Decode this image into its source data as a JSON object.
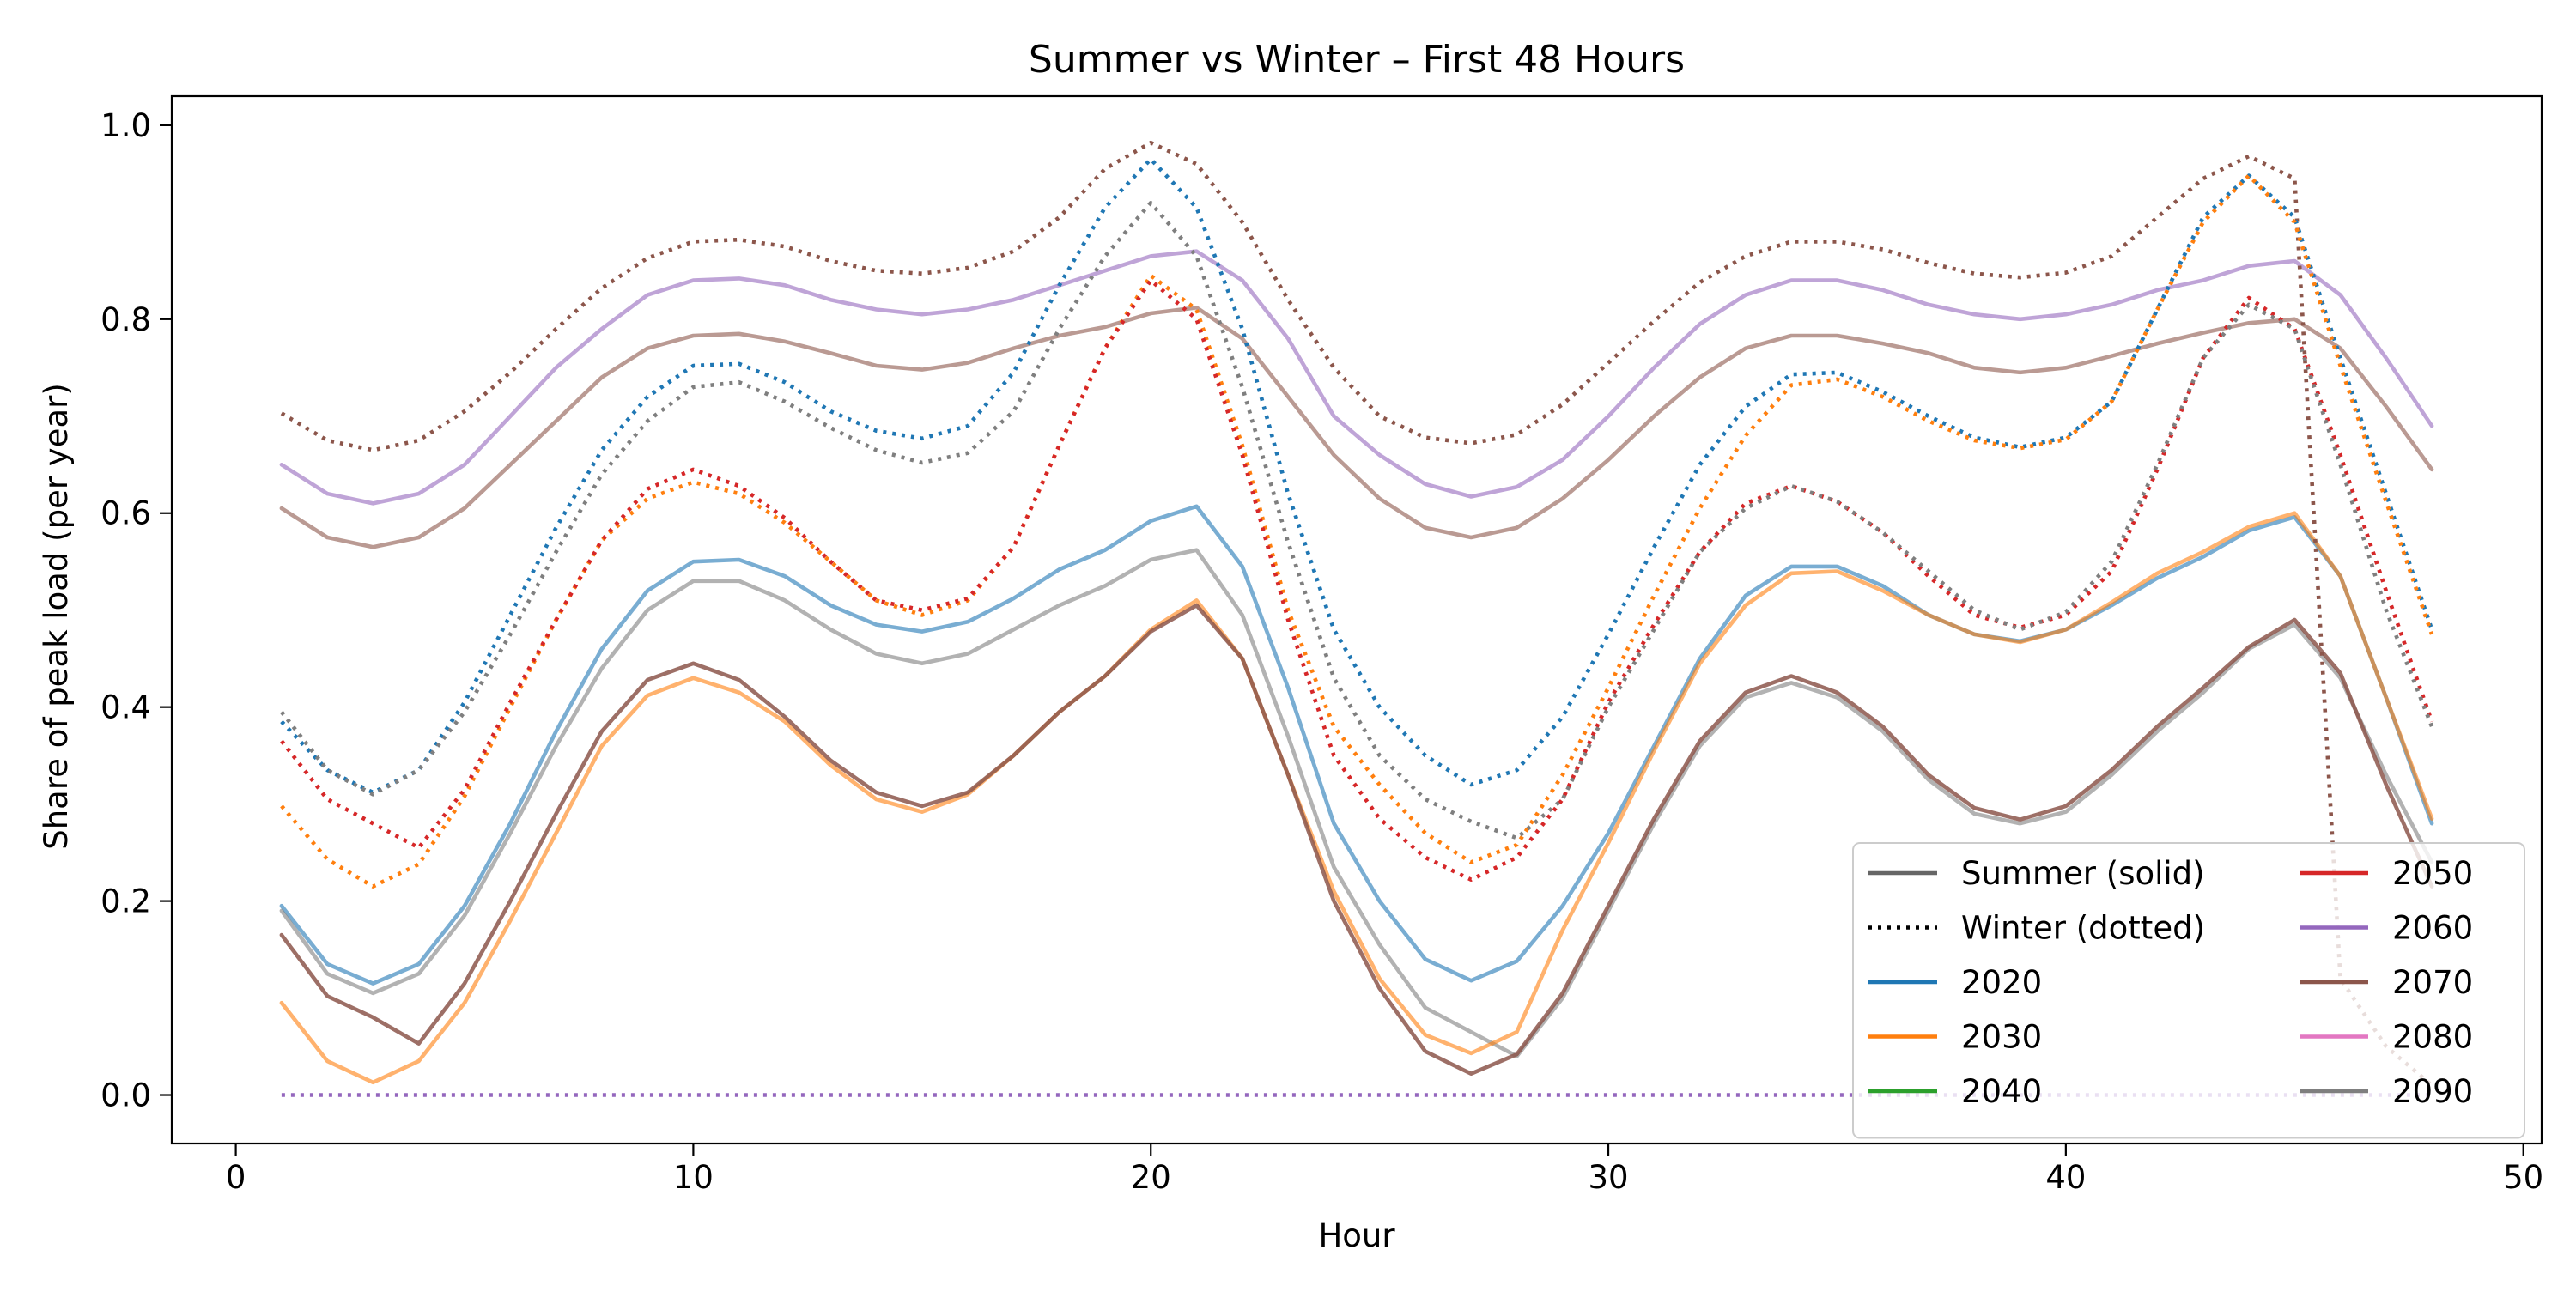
{
  "chart_data": {
    "type": "line",
    "title": "Summer vs Winter – First 48 Hours",
    "xlabel": "Hour",
    "ylabel": "Share of peak load (per year)",
    "xlim": [
      -1.4,
      50.4
    ],
    "ylim": [
      -0.05,
      1.03
    ],
    "x_ticks": [
      0,
      10,
      20,
      30,
      40,
      50
    ],
    "y_ticks": [
      0.0,
      0.2,
      0.4,
      0.6,
      0.8,
      1.0
    ],
    "x_tick_labels": [
      "0",
      "10",
      "20",
      "30",
      "40",
      "50"
    ],
    "y_tick_labels": [
      "0.0",
      "0.2",
      "0.4",
      "0.6",
      "0.8",
      "1.0"
    ],
    "grid": false,
    "legend": {
      "placement": "lower-right",
      "columns": 2,
      "entries": [
        {
          "label": "Summer (solid)",
          "color": "#666666",
          "style": "solid"
        },
        {
          "label": "Winter (dotted)",
          "color": "#000000",
          "style": "dotted"
        },
        {
          "label": "2020",
          "color": "#1f77b4",
          "style": "solid"
        },
        {
          "label": "2030",
          "color": "#ff7f0e",
          "style": "solid"
        },
        {
          "label": "2040",
          "color": "#2ca02c",
          "style": "solid"
        },
        {
          "label": "2050",
          "color": "#d62728",
          "style": "solid"
        },
        {
          "label": "2060",
          "color": "#9467bd",
          "style": "solid"
        },
        {
          "label": "2070",
          "color": "#8c564b",
          "style": "solid"
        },
        {
          "label": "2080",
          "color": "#e377c2",
          "style": "solid"
        },
        {
          "label": "2090",
          "color": "#7f7f7f",
          "style": "solid"
        }
      ]
    },
    "x": [
      1,
      2,
      3,
      4,
      5,
      6,
      7,
      8,
      9,
      10,
      11,
      12,
      13,
      14,
      15,
      16,
      17,
      18,
      19,
      20,
      21,
      22,
      23,
      24,
      25,
      26,
      27,
      28,
      29,
      30,
      31,
      32,
      33,
      34,
      35,
      36,
      37,
      38,
      39,
      40,
      41,
      42,
      43,
      44,
      45,
      46,
      47,
      48
    ],
    "series": [
      {
        "year": "2060",
        "season": "summer",
        "color": "#9467bd",
        "opacity": 0.6,
        "style": "solid",
        "values": [
          0.65,
          0.62,
          0.61,
          0.62,
          0.65,
          0.7,
          0.75,
          0.79,
          0.825,
          0.84,
          0.842,
          0.835,
          0.82,
          0.81,
          0.805,
          0.81,
          0.82,
          0.835,
          0.85,
          0.865,
          0.87,
          0.84,
          0.78,
          0.7,
          0.66,
          0.63,
          0.617,
          0.627,
          0.655,
          0.7,
          0.75,
          0.795,
          0.825,
          0.84,
          0.84,
          0.83,
          0.815,
          0.805,
          0.8,
          0.805,
          0.815,
          0.83,
          0.84,
          0.855,
          0.86,
          0.825,
          0.76,
          0.69
        ]
      },
      {
        "year": "2070",
        "season": "summer",
        "color": "#8c564b",
        "opacity": 0.6,
        "style": "solid",
        "values": [
          0.605,
          0.575,
          0.565,
          0.575,
          0.605,
          0.65,
          0.695,
          0.74,
          0.77,
          0.783,
          0.785,
          0.777,
          0.765,
          0.752,
          0.748,
          0.755,
          0.77,
          0.783,
          0.792,
          0.806,
          0.812,
          0.78,
          0.72,
          0.66,
          0.615,
          0.585,
          0.575,
          0.585,
          0.615,
          0.655,
          0.7,
          0.74,
          0.77,
          0.783,
          0.783,
          0.775,
          0.765,
          0.75,
          0.745,
          0.75,
          0.762,
          0.775,
          0.786,
          0.796,
          0.8,
          0.77,
          0.71,
          0.645
        ]
      },
      {
        "year": "2020",
        "season": "summer",
        "color": "#1f77b4",
        "opacity": 0.6,
        "style": "solid",
        "values": [
          0.195,
          0.135,
          0.115,
          0.135,
          0.195,
          0.28,
          0.375,
          0.46,
          0.52,
          0.55,
          0.552,
          0.535,
          0.505,
          0.485,
          0.478,
          0.488,
          0.512,
          0.542,
          0.562,
          0.592,
          0.607,
          0.545,
          0.42,
          0.28,
          0.2,
          0.14,
          0.118,
          0.138,
          0.195,
          0.27,
          0.36,
          0.45,
          0.515,
          0.545,
          0.545,
          0.525,
          0.495,
          0.475,
          0.468,
          0.48,
          0.505,
          0.533,
          0.555,
          0.582,
          0.596,
          0.535,
          0.41,
          0.28
        ]
      },
      {
        "year": "2090",
        "season": "summer",
        "color": "#7f7f7f",
        "opacity": 0.6,
        "style": "solid",
        "values": [
          0.19,
          0.125,
          0.105,
          0.125,
          0.185,
          0.27,
          0.36,
          0.44,
          0.5,
          0.53,
          0.53,
          0.51,
          0.48,
          0.455,
          0.445,
          0.455,
          0.48,
          0.505,
          0.525,
          0.552,
          0.562,
          0.495,
          0.37,
          0.235,
          0.155,
          0.09,
          0.065,
          0.04,
          0.1,
          0.19,
          0.28,
          0.36,
          0.41,
          0.425,
          0.41,
          0.375,
          0.325,
          0.29,
          0.28,
          0.292,
          0.33,
          0.375,
          0.415,
          0.46,
          0.485,
          0.43,
          0.33,
          0.24
        ]
      },
      {
        "year": "2030",
        "season": "summer",
        "color": "#ff7f0e",
        "opacity": 0.6,
        "style": "solid",
        "values": [
          0.095,
          0.035,
          0.013,
          0.035,
          0.095,
          0.18,
          0.27,
          0.36,
          0.412,
          0.43,
          0.415,
          0.385,
          0.34,
          0.305,
          0.292,
          0.31,
          0.35,
          0.395,
          0.432,
          0.48,
          0.51,
          0.45,
          0.33,
          0.21,
          0.12,
          0.062,
          0.043,
          0.065,
          0.17,
          0.26,
          0.355,
          0.445,
          0.505,
          0.538,
          0.54,
          0.52,
          0.495,
          0.475,
          0.467,
          0.48,
          0.508,
          0.538,
          0.56,
          0.586,
          0.6,
          0.535,
          0.41,
          0.285
        ]
      },
      {
        "year": "2070",
        "season": "summer",
        "color": "#8c564b",
        "opacity": 0.85,
        "style": "solid",
        "values": [
          0.165,
          0.102,
          0.08,
          0.053,
          0.115,
          0.2,
          0.29,
          0.375,
          0.428,
          0.445,
          0.428,
          0.39,
          0.345,
          0.312,
          0.298,
          0.312,
          0.35,
          0.395,
          0.432,
          0.478,
          0.505,
          0.45,
          0.33,
          0.2,
          0.11,
          0.045,
          0.022,
          0.042,
          0.105,
          0.195,
          0.285,
          0.365,
          0.415,
          0.432,
          0.415,
          0.38,
          0.33,
          0.296,
          0.284,
          0.298,
          0.335,
          0.38,
          0.42,
          0.462,
          0.49,
          0.435,
          0.32,
          0.215
        ]
      },
      {
        "year": "2070",
        "season": "winter",
        "color": "#8c564b",
        "opacity": 1.0,
        "style": "dotted",
        "values": [
          0.703,
          0.675,
          0.665,
          0.675,
          0.705,
          0.745,
          0.79,
          0.832,
          0.863,
          0.88,
          0.882,
          0.875,
          0.86,
          0.85,
          0.847,
          0.853,
          0.87,
          0.905,
          0.955,
          0.982,
          0.96,
          0.9,
          0.82,
          0.75,
          0.7,
          0.678,
          0.672,
          0.681,
          0.712,
          0.755,
          0.798,
          0.838,
          0.865,
          0.88,
          0.88,
          0.872,
          0.858,
          0.847,
          0.843,
          0.848,
          0.865,
          0.905,
          0.945,
          0.968,
          0.945,
          0.12,
          0.05,
          0.01
        ]
      },
      {
        "year": "2020",
        "season": "winter",
        "color": "#1f77b4",
        "opacity": 1.0,
        "style": "dotted",
        "values": [
          0.385,
          0.335,
          0.312,
          0.335,
          0.405,
          0.495,
          0.585,
          0.665,
          0.72,
          0.752,
          0.754,
          0.735,
          0.705,
          0.685,
          0.677,
          0.69,
          0.745,
          0.835,
          0.915,
          0.965,
          0.915,
          0.79,
          0.62,
          0.48,
          0.4,
          0.35,
          0.32,
          0.335,
          0.39,
          0.475,
          0.565,
          0.65,
          0.71,
          0.743,
          0.745,
          0.725,
          0.7,
          0.678,
          0.668,
          0.678,
          0.715,
          0.81,
          0.905,
          0.948,
          0.905,
          0.76,
          0.62,
          0.48
        ]
      },
      {
        "year": "2030",
        "season": "winter",
        "color": "#ff7f0e",
        "opacity": 1.0,
        "style": "dotted",
        "values": [
          0.298,
          0.243,
          0.215,
          0.238,
          0.308,
          0.4,
          0.49,
          0.572,
          0.615,
          0.632,
          0.62,
          0.59,
          0.55,
          0.51,
          0.495,
          0.51,
          0.565,
          0.67,
          0.77,
          0.845,
          0.81,
          0.67,
          0.5,
          0.38,
          0.32,
          0.27,
          0.24,
          0.258,
          0.33,
          0.42,
          0.515,
          0.605,
          0.68,
          0.732,
          0.738,
          0.72,
          0.695,
          0.675,
          0.667,
          0.676,
          0.715,
          0.81,
          0.9,
          0.948,
          0.9,
          0.752,
          0.612,
          0.475
        ]
      },
      {
        "year": "2050",
        "season": "winter",
        "color": "#d62728",
        "opacity": 1.0,
        "style": "dotted",
        "values": [
          0.365,
          0.305,
          0.28,
          0.255,
          0.315,
          0.405,
          0.49,
          0.572,
          0.625,
          0.645,
          0.628,
          0.595,
          0.55,
          0.51,
          0.5,
          0.512,
          0.565,
          0.67,
          0.77,
          0.84,
          0.8,
          0.66,
          0.49,
          0.35,
          0.285,
          0.245,
          0.222,
          0.245,
          0.305,
          0.405,
          0.485,
          0.56,
          0.61,
          0.628,
          0.612,
          0.58,
          0.535,
          0.495,
          0.482,
          0.495,
          0.54,
          0.645,
          0.76,
          0.822,
          0.79,
          0.66,
          0.52,
          0.385
        ]
      },
      {
        "year": "2090",
        "season": "winter",
        "color": "#7f7f7f",
        "opacity": 1.0,
        "style": "dotted",
        "values": [
          0.395,
          0.335,
          0.31,
          0.335,
          0.395,
          0.475,
          0.56,
          0.64,
          0.695,
          0.73,
          0.735,
          0.715,
          0.688,
          0.665,
          0.652,
          0.662,
          0.705,
          0.79,
          0.865,
          0.92,
          0.865,
          0.73,
          0.57,
          0.43,
          0.35,
          0.305,
          0.282,
          0.265,
          0.305,
          0.4,
          0.48,
          0.56,
          0.605,
          0.628,
          0.612,
          0.58,
          0.54,
          0.5,
          0.48,
          0.498,
          0.55,
          0.65,
          0.76,
          0.815,
          0.79,
          0.65,
          0.5,
          0.38
        ]
      },
      {
        "year": "2060",
        "season": "winter",
        "color": "#9467bd",
        "opacity": 1.0,
        "style": "dotted",
        "values": [
          0,
          0,
          0,
          0,
          0,
          0,
          0,
          0,
          0,
          0,
          0,
          0,
          0,
          0,
          0,
          0,
          0,
          0,
          0,
          0,
          0,
          0,
          0,
          0,
          0,
          0,
          0,
          0,
          0,
          0,
          0,
          0,
          0,
          0,
          0,
          0,
          0,
          0,
          0,
          0,
          0,
          0,
          0,
          0,
          0,
          0,
          0,
          0
        ]
      }
    ]
  }
}
